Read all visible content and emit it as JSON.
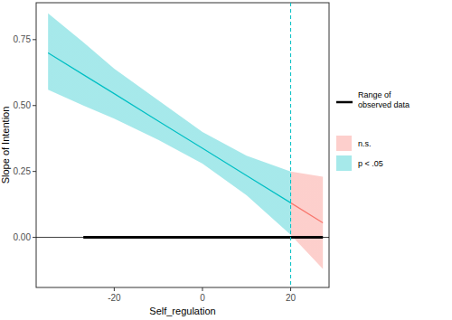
{
  "chart_data": {
    "type": "line",
    "x_label": "Self_regulation",
    "y_label": "Slope of Intention",
    "x": [
      -35,
      -27,
      -20,
      -10,
      0,
      10,
      20,
      27.3
    ],
    "values": [
      0.7,
      0.617,
      0.545,
      0.441,
      0.338,
      0.234,
      0.131,
      0.055
    ],
    "upper": [
      0.85,
      0.74,
      0.64,
      0.52,
      0.4,
      0.31,
      0.25,
      0.23
    ],
    "lower": [
      0.56,
      0.5,
      0.45,
      0.37,
      0.28,
      0.16,
      0.01,
      -0.12
    ],
    "threshold": 20,
    "observed_range": [
      -27,
      27.3
    ],
    "xlim": [
      -37.7,
      28.7
    ],
    "ylim": [
      -0.19,
      0.89
    ],
    "xticks": [
      -20,
      0,
      20
    ],
    "yticks": [
      {
        "value": 0,
        "label": "0.00"
      },
      {
        "value": 0.25,
        "label": "0.25"
      },
      {
        "value": 0.5,
        "label": "0.50"
      },
      {
        "value": 0.75,
        "label": "0.75"
      }
    ],
    "legend_entries": [
      {
        "name": "Range of observed data",
        "color": "#000000"
      },
      {
        "name": "n.s.",
        "color": "#F8766D"
      },
      {
        "name": "p < .05",
        "color": "#00BFC4"
      }
    ],
    "grid": false
  }
}
